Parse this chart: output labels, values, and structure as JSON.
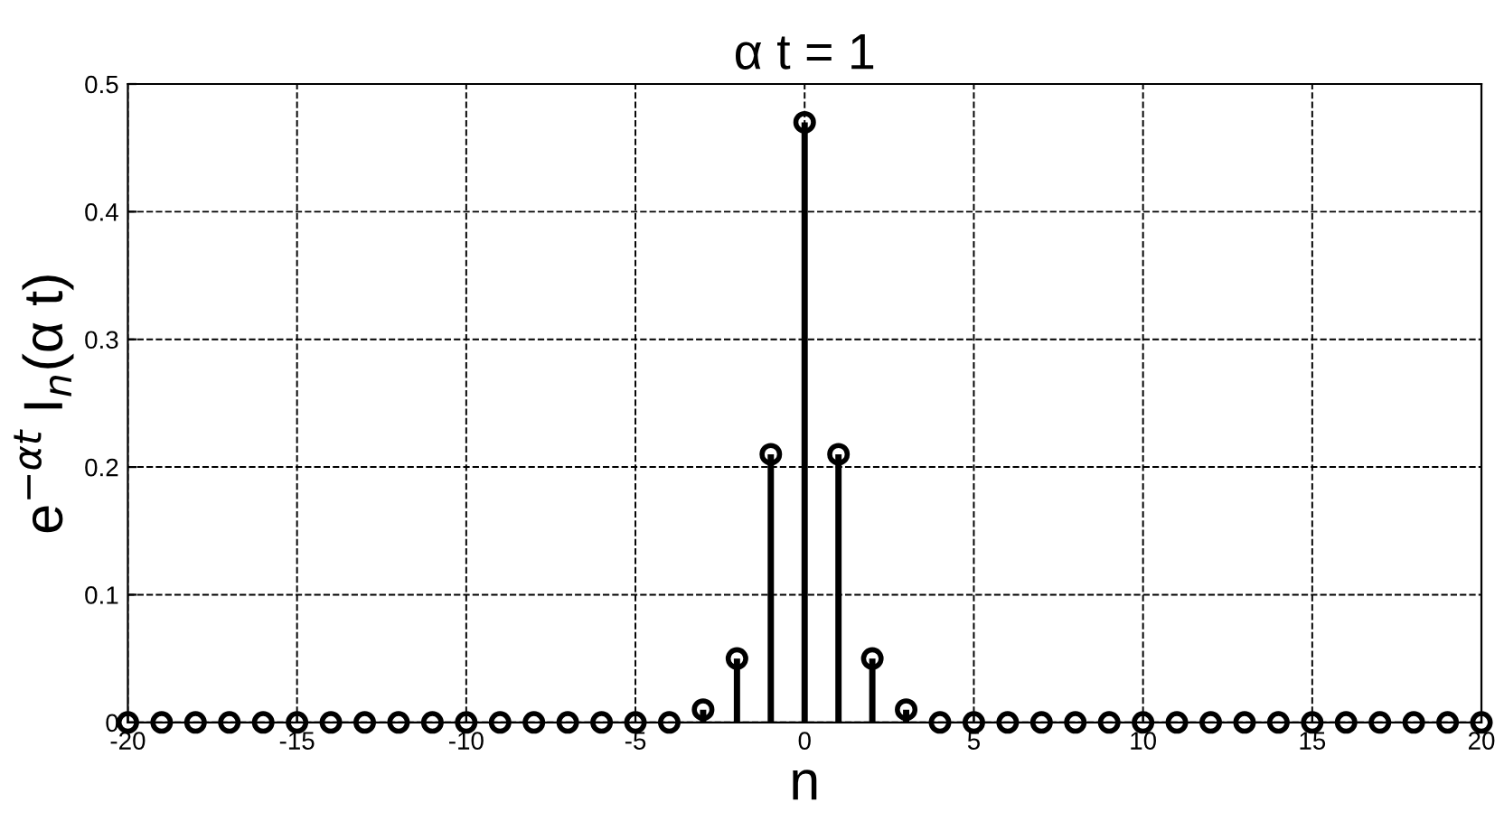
{
  "chart_data": {
    "type": "lollipop",
    "title": "α t = 1",
    "xlabel": "n",
    "ylabel": "e$^{−αt}$ I$_{n}$(α t)",
    "x": [
      -20,
      -19,
      -18,
      -17,
      -16,
      -15,
      -14,
      -13,
      -12,
      -11,
      -10,
      -9,
      -8,
      -7,
      -6,
      -5,
      -4,
      -3,
      -2,
      -1,
      0,
      1,
      2,
      3,
      4,
      5,
      6,
      7,
      8,
      9,
      10,
      11,
      12,
      13,
      14,
      15,
      16,
      17,
      18,
      19,
      20
    ],
    "values": [
      0,
      0,
      0,
      0,
      0,
      0,
      0,
      0,
      0,
      0,
      0,
      0,
      0,
      0,
      0,
      0,
      0,
      0.01,
      0.05,
      0.21,
      0.47,
      0.21,
      0.05,
      0.01,
      0,
      0,
      0,
      0,
      0,
      0,
      0,
      0,
      0,
      0,
      0,
      0,
      0,
      0,
      0,
      0,
      0
    ],
    "color": "#000000",
    "marker": "circle",
    "xlim": [
      -20,
      20
    ],
    "xticks": [
      -20,
      -15,
      -10,
      -5,
      0,
      5,
      10,
      15,
      20
    ],
    "ylim": [
      0,
      0.5
    ],
    "yticks": [
      0,
      0.1,
      0.2,
      0.3,
      0.4,
      0.5
    ],
    "grid": true,
    "line_style": "dashed"
  }
}
